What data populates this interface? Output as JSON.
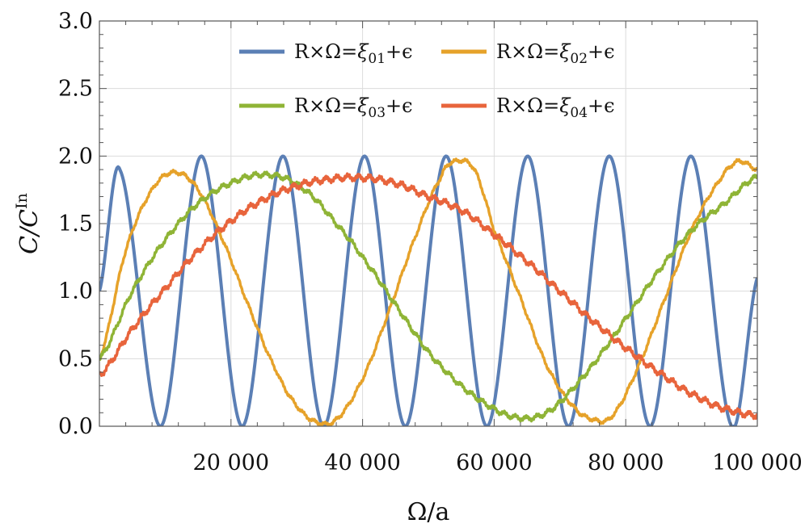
{
  "chart_data": {
    "type": "line",
    "title": "",
    "xlabel": "Ω/a",
    "ylabel_main": "C/C",
    "ylabel_sup": "In",
    "xlim": [
      0,
      100000
    ],
    "ylim": [
      0,
      3
    ],
    "x_ticks": [
      20000,
      40000,
      60000,
      80000,
      100000
    ],
    "x_tick_labels": [
      "20 000",
      "40 000",
      "60 000",
      "80 000",
      "100 000"
    ],
    "y_ticks": [
      0,
      0.5,
      1,
      1.5,
      2,
      2.5,
      3
    ],
    "y_tick_labels": [
      "0.0",
      "0.5",
      "1.0",
      "1.5",
      "2.0",
      "2.5",
      "3.0"
    ],
    "grid": true,
    "legend_position": "top",
    "series": [
      {
        "name": "R×Ω=ξ01+ϵ",
        "label_prefix": "R×Ω=",
        "label_symbol": "ξ",
        "label_sub": "01",
        "label_suffix": "+ϵ",
        "color": "#5b7fb5",
        "x": [
          0,
          3100,
          9300,
          15500,
          21700,
          27900,
          34100,
          40300,
          46500,
          52700,
          58900,
          65100,
          71300,
          77500,
          83700,
          89900,
          96100,
          100000
        ],
        "y": [
          1.0,
          1.9,
          0.0,
          2.0,
          0.0,
          2.0,
          0.0,
          2.0,
          0.0,
          2.0,
          0.0,
          2.0,
          0.0,
          2.0,
          0.0,
          2.0,
          0.0,
          1.1
        ]
      },
      {
        "name": "R×Ω=ξ02+ϵ",
        "label_prefix": "R×Ω=",
        "label_symbol": "ξ",
        "label_sub": "02",
        "label_suffix": "+ϵ",
        "color": "#e6a22a",
        "x": [
          0,
          4000,
          8000,
          11500,
          15000,
          19000,
          23000,
          27000,
          30000,
          33000,
          36000,
          40000,
          44000,
          48000,
          52000,
          54000,
          57000,
          60000,
          64000,
          68000,
          72000,
          75000,
          78000,
          82000,
          86000,
          90000,
          94000,
          97000,
          100000
        ],
        "y": [
          0.5,
          1.3,
          1.75,
          1.88,
          1.75,
          1.35,
          0.85,
          0.4,
          0.15,
          0.03,
          0.05,
          0.35,
          0.85,
          1.4,
          1.85,
          1.96,
          1.9,
          1.45,
          0.95,
          0.45,
          0.15,
          0.05,
          0.08,
          0.45,
          0.95,
          1.45,
          1.8,
          1.96,
          1.9
        ]
      },
      {
        "name": "R×Ω=ξ03+ϵ",
        "label_prefix": "R×Ω=",
        "label_symbol": "ξ",
        "label_sub": "03",
        "label_suffix": "+ϵ",
        "color": "#8fb436",
        "x": [
          0,
          5000,
          10000,
          15000,
          20000,
          24000,
          28000,
          32000,
          36000,
          40000,
          45000,
          50000,
          55000,
          60000,
          64000,
          68000,
          72000,
          76000,
          80000,
          85000,
          90000,
          95000,
          100000
        ],
        "y": [
          0.5,
          1.0,
          1.38,
          1.65,
          1.8,
          1.86,
          1.84,
          1.72,
          1.5,
          1.25,
          0.9,
          0.55,
          0.3,
          0.13,
          0.06,
          0.1,
          0.28,
          0.52,
          0.8,
          1.15,
          1.45,
          1.65,
          1.85
        ]
      },
      {
        "name": "R×Ω=ξ04+ϵ",
        "label_prefix": "R×Ω=",
        "label_symbol": "ξ",
        "label_sub": "04",
        "label_suffix": "+ϵ",
        "color": "#e8643c",
        "x": [
          0,
          5000,
          10000,
          15000,
          20000,
          25000,
          30000,
          35000,
          40000,
          45000,
          50000,
          55000,
          60000,
          65000,
          70000,
          75000,
          80000,
          85000,
          90000,
          95000,
          100000
        ],
        "y": [
          0.38,
          0.72,
          1.02,
          1.3,
          1.52,
          1.68,
          1.78,
          1.83,
          1.84,
          1.8,
          1.7,
          1.6,
          1.42,
          1.22,
          1.0,
          0.78,
          0.58,
          0.4,
          0.24,
          0.13,
          0.08
        ]
      }
    ]
  }
}
